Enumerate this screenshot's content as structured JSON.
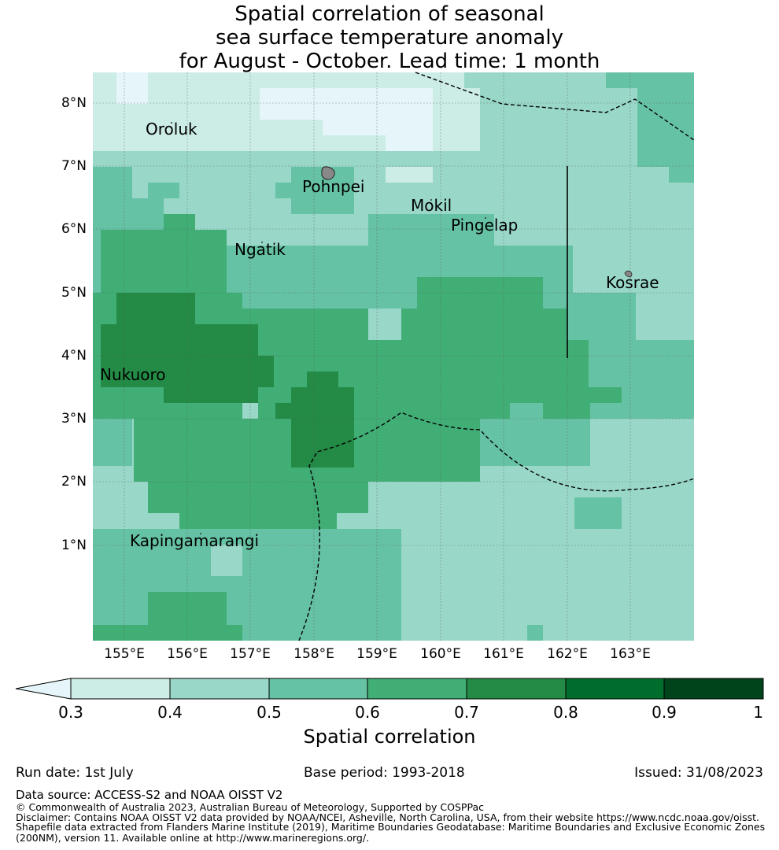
{
  "title": {
    "line1": "Spatial correlation of seasonal",
    "line2": "sea surface temperature anomaly",
    "line3": "for August - October. Lead time: 1 month"
  },
  "map": {
    "lat_labels": [
      "8°N",
      "7°N",
      "6°N",
      "5°N",
      "4°N",
      "3°N",
      "2°N",
      "1°N"
    ],
    "lon_labels": [
      "155°E",
      "156°E",
      "157°E",
      "158°E",
      "159°E",
      "160°E",
      "161°E",
      "162°E",
      "163°E"
    ],
    "places": [
      "Oroluk",
      "Pohnpei",
      "Mokil",
      "Pingelap",
      "Ngatik",
      "Kosrae",
      "Nukuoro",
      "Kapingamarangi"
    ],
    "colors": {
      "below_0_3": "#e5f5f9",
      "c0_3_0_4": "#ccece6",
      "c0_4_0_5": "#99d8c9",
      "c0_5_0_6": "#66c2a4",
      "c0_6_0_7": "#41ae76",
      "c0_7_0_8": "#238b45",
      "c0_8_0_9": "#006d2c",
      "c0_9_1": "#00441b"
    }
  },
  "colorbar": {
    "ticks": [
      "0.3",
      "0.4",
      "0.5",
      "0.6",
      "0.7",
      "0.8",
      "0.9",
      "1"
    ],
    "label": "Spatial correlation"
  },
  "footer": {
    "run_date": "Run date: 1st July",
    "base_period": "Base period: 1993-2018",
    "issued": "Issued: 31/08/2023",
    "data_source": "Data source: ACCESS-S2 and NOAA OISST V2",
    "copyright": "© Commonwealth of Australia 2023, Australian Bureau of Meteorology, Supported by COSPPac",
    "disclaimer": "Disclaimer: Contains NOAA OISST V2 data provided by NOAA/NCEI, Asheville, North Carolina, USA, from their website https://www.ncdc.noaa.gov/oisst.",
    "shapefile1": "Shapefile data extracted from Flanders Marine Institute (2019), Maritime Boundaries Geodatabase: Maritime Boundaries and Exclusive Economic Zones",
    "shapefile2": "(200NM), version 11. Available online at http://www.marineregions.org/."
  }
}
